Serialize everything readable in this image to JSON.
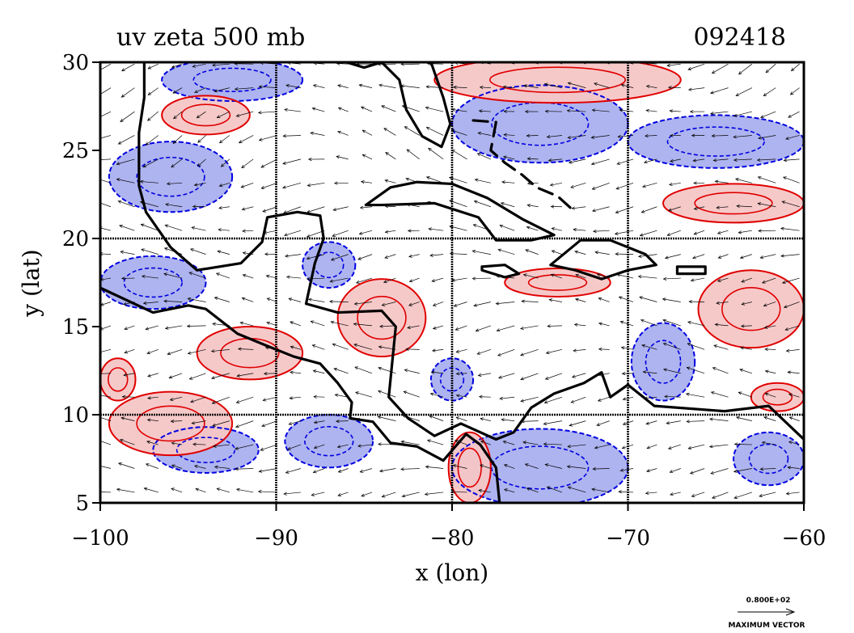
{
  "chart_data": {
    "type": "contour",
    "title": "uv zeta 500 mb",
    "timestamp": "092418",
    "xlabel": "x (lon)",
    "ylabel": "y (lat)",
    "xlim": [
      -100,
      -60
    ],
    "ylim": [
      5,
      30
    ],
    "x_ticks": [
      -100,
      -90,
      -80,
      -70,
      -60
    ],
    "x_tick_labels": [
      "−100",
      "−90",
      "−80",
      "−70",
      "−60"
    ],
    "y_ticks": [
      5,
      10,
      15,
      20,
      25,
      30
    ],
    "y_tick_labels": [
      "5",
      "10",
      "15",
      "20",
      "25",
      "30"
    ],
    "grid_x": [
      -90,
      -80,
      -70
    ],
    "grid_y": [
      10,
      20
    ],
    "grid": true,
    "fields": [
      "u/v wind vectors",
      "relative vorticity (zeta) contours"
    ],
    "colors": {
      "positive_contour": "#e00000",
      "positive_fill": "#f5c6c6",
      "negative_contour": "#0000e0",
      "negative_fill": "#aab0ee",
      "coastline": "#000000",
      "vectors": "#000000"
    },
    "positive_regions": [
      {
        "lon": -74,
        "lat": 29,
        "rx": 7,
        "ry": 1.3
      },
      {
        "lon": -64,
        "lat": 22,
        "rx": 4,
        "ry": 1.1
      },
      {
        "lon": -63,
        "lat": 16,
        "rx": 3,
        "ry": 2.2
      },
      {
        "lon": -84,
        "lat": 15.5,
        "rx": 2.5,
        "ry": 2.2
      },
      {
        "lon": -91.5,
        "lat": 13.5,
        "rx": 3,
        "ry": 1.5
      },
      {
        "lon": -96,
        "lat": 9.5,
        "rx": 3.5,
        "ry": 1.8
      },
      {
        "lon": -99,
        "lat": 12,
        "rx": 1,
        "ry": 1.2
      },
      {
        "lon": -94,
        "lat": 27,
        "rx": 2.5,
        "ry": 1.1
      },
      {
        "lon": -79,
        "lat": 7,
        "rx": 1.2,
        "ry": 2
      },
      {
        "lon": -74,
        "lat": 17.5,
        "rx": 3,
        "ry": 0.8
      },
      {
        "lon": -61.5,
        "lat": 11,
        "rx": 1.5,
        "ry": 0.8
      }
    ],
    "negative_regions": [
      {
        "lon": -75,
        "lat": 26.5,
        "rx": 5,
        "ry": 2.2
      },
      {
        "lon": -65,
        "lat": 25.5,
        "rx": 5,
        "ry": 1.5
      },
      {
        "lon": -96,
        "lat": 23.5,
        "rx": 3.5,
        "ry": 2
      },
      {
        "lon": -92.5,
        "lat": 29,
        "rx": 4,
        "ry": 1.2
      },
      {
        "lon": -87,
        "lat": 18.5,
        "rx": 1.5,
        "ry": 1.3
      },
      {
        "lon": -68,
        "lat": 13,
        "rx": 1.8,
        "ry": 2.2
      },
      {
        "lon": -87,
        "lat": 8.5,
        "rx": 2.5,
        "ry": 1.5
      },
      {
        "lon": -94,
        "lat": 8,
        "rx": 3,
        "ry": 1.3
      },
      {
        "lon": -75,
        "lat": 7,
        "rx": 5,
        "ry": 2.2
      },
      {
        "lon": -62,
        "lat": 7.5,
        "rx": 2,
        "ry": 1.5
      },
      {
        "lon": -97,
        "lat": 17.5,
        "rx": 3,
        "ry": 1.5
      },
      {
        "lon": -80,
        "lat": 12,
        "rx": 1.2,
        "ry": 1.2
      }
    ],
    "coastlines": [
      {
        "name": "gulf-of-mexico-coast",
        "points": [
          [
            -97.5,
            30
          ],
          [
            -97.5,
            28
          ],
          [
            -97.8,
            26
          ],
          [
            -97.8,
            23
          ],
          [
            -97.4,
            21.5
          ],
          [
            -96,
            19.5
          ],
          [
            -94.5,
            18.2
          ],
          [
            -92,
            18.6
          ],
          [
            -90.8,
            19.8
          ],
          [
            -90.5,
            21.2
          ],
          [
            -88.8,
            21.5
          ],
          [
            -87.5,
            21.3
          ],
          [
            -87.3,
            20
          ],
          [
            -87.8,
            18.6
          ],
          [
            -88.3,
            16.3
          ],
          [
            -86.5,
            15.8
          ],
          [
            -84,
            15.9
          ],
          [
            -83.2,
            15
          ],
          [
            -83.5,
            12
          ],
          [
            -83.6,
            11
          ],
          [
            -82.5,
            9.8
          ],
          [
            -81,
            8.8
          ],
          [
            -79.5,
            9.5
          ],
          [
            -77.5,
            8.6
          ],
          [
            -76.5,
            9
          ],
          [
            -75.5,
            10.4
          ],
          [
            -74.2,
            11.2
          ],
          [
            -72.5,
            11.8
          ],
          [
            -71.5,
            12.4
          ],
          [
            -71,
            11
          ],
          [
            -70,
            11.7
          ],
          [
            -68.5,
            10.5
          ],
          [
            -64.5,
            10.2
          ],
          [
            -62,
            10.5
          ],
          [
            -60,
            8.6
          ]
        ]
      },
      {
        "name": "pacific-coast",
        "points": [
          [
            -100,
            17.2
          ],
          [
            -97,
            15.8
          ],
          [
            -95,
            16.2
          ],
          [
            -94,
            16
          ],
          [
            -92.2,
            14.6
          ],
          [
            -90.5,
            13.9
          ],
          [
            -89,
            13.3
          ],
          [
            -87.5,
            12.9
          ],
          [
            -86.5,
            11.8
          ],
          [
            -85.7,
            10.7
          ],
          [
            -85.8,
            9.8
          ],
          [
            -84.5,
            9.6
          ],
          [
            -83.5,
            8.4
          ],
          [
            -82,
            8.2
          ],
          [
            -80.5,
            7.4
          ],
          [
            -79.2,
            8.9
          ],
          [
            -78.4,
            8.3
          ],
          [
            -77.5,
            7
          ],
          [
            -77.3,
            5
          ]
        ]
      },
      {
        "name": "northern-gulf-coast",
        "points": [
          [
            -90.5,
            30
          ],
          [
            -89.5,
            30.3
          ],
          [
            -87,
            30.3
          ],
          [
            -85,
            29.7
          ],
          [
            -84,
            30
          ],
          [
            -83,
            29
          ],
          [
            -82.6,
            27.3
          ],
          [
            -81.7,
            25.8
          ],
          [
            -80.6,
            25.2
          ],
          [
            -80.1,
            26.5
          ],
          [
            -80.5,
            28
          ],
          [
            -81.2,
            30
          ]
        ]
      },
      {
        "name": "cuba",
        "points": [
          [
            -84.9,
            21.9
          ],
          [
            -83.5,
            22.9
          ],
          [
            -82,
            23.2
          ],
          [
            -80,
            23.1
          ],
          [
            -78,
            22.3
          ],
          [
            -76,
            21.1
          ],
          [
            -74.2,
            20.2
          ],
          [
            -75.5,
            19.9
          ],
          [
            -77.5,
            19.9
          ],
          [
            -78.5,
            21.2
          ],
          [
            -81,
            22
          ],
          [
            -84,
            21.9
          ],
          [
            -84.9,
            21.9
          ]
        ]
      },
      {
        "name": "hispaniola",
        "points": [
          [
            -74.4,
            18.5
          ],
          [
            -72.7,
            19.9
          ],
          [
            -71,
            19.9
          ],
          [
            -69,
            19.1
          ],
          [
            -68.4,
            18.5
          ],
          [
            -70,
            18.2
          ],
          [
            -71.5,
            17.7
          ],
          [
            -73,
            18.2
          ],
          [
            -74.4,
            18.5
          ]
        ]
      },
      {
        "name": "jamaica",
        "points": [
          [
            -78.3,
            18.4
          ],
          [
            -77,
            18.5
          ],
          [
            -76.2,
            18
          ],
          [
            -77,
            17.8
          ],
          [
            -78.3,
            18.2
          ],
          [
            -78.3,
            18.4
          ]
        ]
      },
      {
        "name": "puerto-rico",
        "points": [
          [
            -67.2,
            18.4
          ],
          [
            -65.6,
            18.4
          ],
          [
            -65.6,
            18
          ],
          [
            -67.2,
            18
          ],
          [
            -67.2,
            18.4
          ]
        ]
      },
      {
        "name": "bahamas",
        "points": [
          [
            -78.8,
            26.7
          ],
          [
            -77.5,
            26.6
          ],
          [
            -77.8,
            25
          ],
          [
            -77,
            24.3
          ],
          [
            -76,
            23.6
          ],
          [
            -75.2,
            22.9
          ],
          [
            -74,
            22.4
          ],
          [
            -73,
            21.5
          ]
        ]
      }
    ],
    "wind_vectors": "dense field, predominantly easterly (pointing west) in the tropics",
    "reference_vector_label": "0.800E+02",
    "reference_vector_caption": "MAXIMUM VECTOR"
  }
}
